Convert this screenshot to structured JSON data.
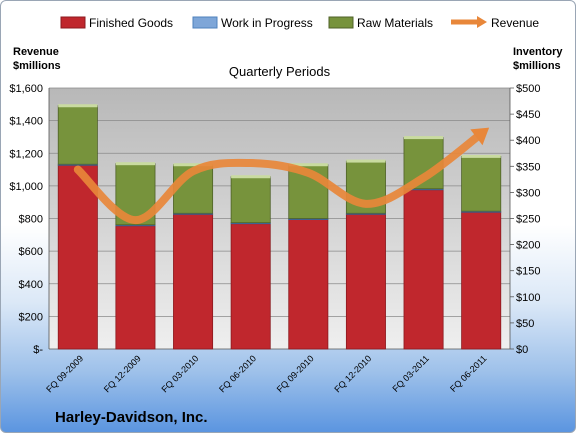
{
  "chart_data": {
    "type": "bar",
    "stacked": true,
    "title": "Quarterly Periods",
    "company": "Harley-Davidson, Inc.",
    "left_axis_label": [
      "Revenue",
      "$millions"
    ],
    "right_axis_label": [
      "Inventory",
      "$millions"
    ],
    "categories": [
      "FQ 09-2009",
      "FQ 12-2009",
      "FQ 03-2010",
      "FQ 06-2010",
      "FQ 09-2010",
      "FQ 12-2010",
      "FQ 03-2011",
      "FQ 06-2011"
    ],
    "left_ylim": [
      0,
      1600
    ],
    "right_ylim": [
      0,
      500
    ],
    "left_ticks": [
      "$-",
      "$200",
      "$400",
      "$600",
      "$800",
      "$1,000",
      "$1,200",
      "$1,400",
      "$1,600"
    ],
    "right_ticks": [
      "$0",
      "$50",
      "$100",
      "$150",
      "$200",
      "$250",
      "$300",
      "$350",
      "$400",
      "$450",
      "$500"
    ],
    "legend_position": "top",
    "grid": true,
    "series": [
      {
        "name": "Finished Goods",
        "axis": "right",
        "color": "#c0272d",
        "values": [
          352,
          236,
          258,
          240,
          248,
          258,
          305,
          262
        ]
      },
      {
        "name": "Work in Progress",
        "axis": "right",
        "color": "#4f81bd",
        "values": [
          2,
          2,
          2,
          2,
          2,
          2,
          2,
          2
        ]
      },
      {
        "name": "Raw Materials",
        "axis": "right",
        "color": "#77933c",
        "values": [
          112,
          117,
          93,
          88,
          103,
          100,
          98,
          105
        ]
      },
      {
        "name": "Revenue",
        "axis": "left",
        "type": "line",
        "color": "#e8873a",
        "values": [
          1100,
          790,
          1090,
          1140,
          1080,
          890,
          1050,
          1320
        ]
      }
    ]
  }
}
